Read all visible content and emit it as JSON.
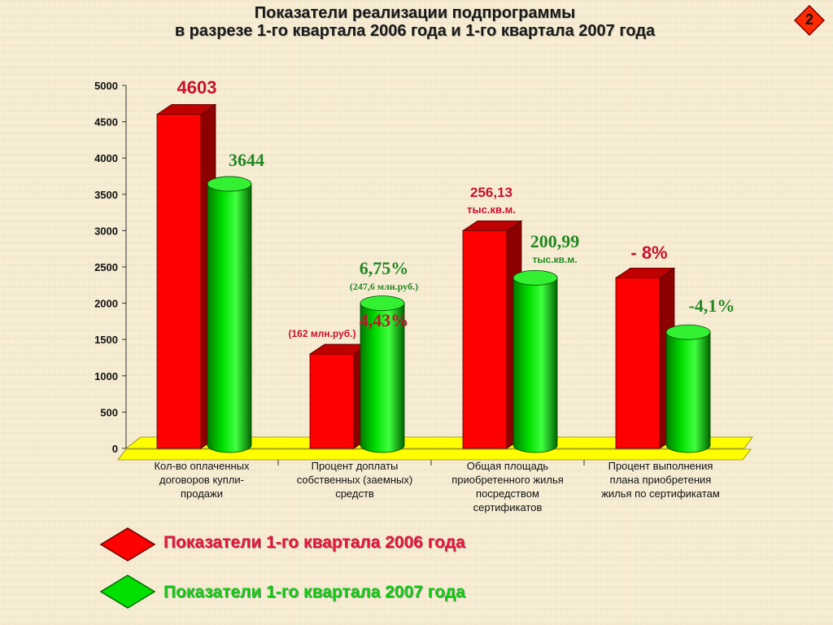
{
  "title": {
    "line1": "Показатели реализации подпрограммы",
    "line2": "в разрезе 1-го квартала 2006 года и 1-го квартала 2007 года"
  },
  "slide_number": "2",
  "colors": {
    "series_2006": "#ff0000",
    "series_2007": "#00e000",
    "floor": "#ffff00",
    "label_2006": "#c8102e",
    "label_2007": "#228822"
  },
  "legend": {
    "items": [
      {
        "label": "Показатели 1-го квартала 2006 года",
        "color": "#ff0000"
      },
      {
        "label": "Показатели 1-го квартала 2007 года",
        "color": "#00e000"
      }
    ]
  },
  "chart_data": {
    "type": "bar",
    "categories": [
      [
        "Кол-во оплаченных",
        "договоров купли-",
        "продажи"
      ],
      [
        "Процент доплаты",
        "собственных (заемных)",
        "средств"
      ],
      [
        "Общая площадь",
        "приобретенного жилья",
        "посредством",
        "сертификатов"
      ],
      [
        "Процент выполнения",
        "плана приобретения",
        "жилья по сертификатам"
      ]
    ],
    "series": [
      {
        "values": [
          4603,
          1300,
          3000,
          2350
        ],
        "data_labels": [
          [
            "4603"
          ],
          [
            "4,43%",
            "(162 млн.руб.)"
          ],
          [
            "256,13",
            "тыс.кв.м."
          ],
          [
            "- 8%"
          ]
        ]
      },
      {
        "values": [
          3644,
          2000,
          2350,
          1600
        ],
        "data_labels": [
          [
            "3644"
          ],
          [
            "6,75%",
            "(247,6 млн.руб.)"
          ],
          [
            "200,99",
            "тыс.кв.м."
          ],
          [
            "-4,1%"
          ]
        ]
      }
    ],
    "ylim": [
      0,
      5000
    ],
    "yticks": [
      0,
      500,
      1000,
      1500,
      2000,
      2500,
      3000,
      3500,
      4000,
      4500,
      5000
    ],
    "xlabel": "",
    "ylabel": "",
    "grid": false,
    "legend_position": "bottom-left"
  }
}
